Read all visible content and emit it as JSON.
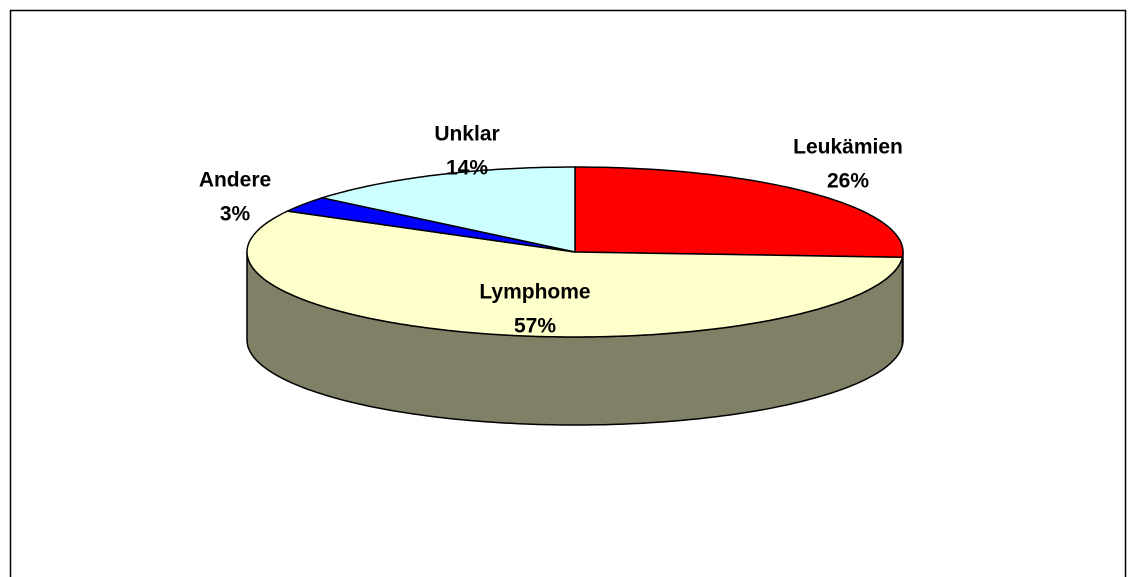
{
  "chart_data": {
    "type": "pie",
    "categories": [
      "Leukämien",
      "Lymphome",
      "Andere",
      "Unklar"
    ],
    "values": [
      26,
      57,
      3,
      14
    ],
    "value_labels": [
      "26%",
      "57%",
      "3%",
      "14%"
    ],
    "colors": [
      "#ff0000",
      "#ffffcc",
      "#0000ff",
      "#ccffff"
    ],
    "three_d": true
  }
}
